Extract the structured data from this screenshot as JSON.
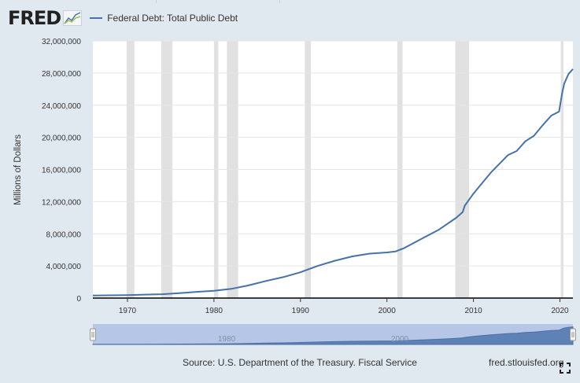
{
  "header": {
    "logo_text": "FRED",
    "logo_icon": "line-graph-icon",
    "logo_color": "#212121"
  },
  "legend": {
    "label": "Federal Debt: Total Public Debt",
    "color": "#4572a7"
  },
  "chart_data": {
    "type": "line",
    "ylabel": "Millions of Dollars",
    "xlim": [
      1966,
      2021.5
    ],
    "ylim": [
      0,
      32000000
    ],
    "y_ticks": [
      {
        "value": 0,
        "label": "0"
      },
      {
        "value": 4000000,
        "label": "4,000,000"
      },
      {
        "value": 8000000,
        "label": "8,000,000"
      },
      {
        "value": 12000000,
        "label": "12,000,000"
      },
      {
        "value": 16000000,
        "label": "16,000,000"
      },
      {
        "value": 20000000,
        "label": "20,000,000"
      },
      {
        "value": 24000000,
        "label": "24,000,000"
      },
      {
        "value": 28000000,
        "label": "28,000,000"
      },
      {
        "value": 32000000,
        "label": "32,000,000"
      }
    ],
    "x_ticks": [
      {
        "value": 1970,
        "label": "1970"
      },
      {
        "value": 1980,
        "label": "1980"
      },
      {
        "value": 1990,
        "label": "1990"
      },
      {
        "value": 2000,
        "label": "2000"
      },
      {
        "value": 2010,
        "label": "2010"
      },
      {
        "value": 2020,
        "label": "2020"
      }
    ],
    "recessions": [
      [
        1969.9,
        1970.8
      ],
      [
        1973.9,
        1975.2
      ],
      [
        1980.0,
        1980.5
      ],
      [
        1981.5,
        1982.8
      ],
      [
        1990.5,
        1991.2
      ],
      [
        2001.2,
        2001.8
      ],
      [
        2007.9,
        2009.5
      ],
      [
        2020.1,
        2020.4
      ]
    ],
    "grid": "horizontal",
    "series": [
      {
        "name": "Federal Debt: Total Public Debt",
        "color": "#4572a7",
        "x": [
          1966,
          1968,
          1970,
          1972,
          1974,
          1976,
          1978,
          1980,
          1982,
          1984,
          1986,
          1988,
          1990,
          1992,
          1994,
          1996,
          1998,
          2000,
          2001,
          2002,
          2004,
          2006,
          2008,
          2008.75,
          2009,
          2010,
          2011,
          2012,
          2013,
          2014,
          2015,
          2016,
          2017,
          2018,
          2019,
          2019.9,
          2020.25,
          2020.5,
          2021,
          2021.5
        ],
        "values": [
          320000,
          345000,
          370000,
          427000,
          475000,
          620000,
          772000,
          908000,
          1142000,
          1572000,
          2120000,
          2602000,
          3206000,
          4002000,
          4644000,
          5182000,
          5526000,
          5674000,
          5807000,
          6228000,
          7379000,
          8507000,
          9986000,
          10700000,
          11500000,
          13000000,
          14300000,
          15600000,
          16700000,
          17800000,
          18300000,
          19500000,
          20200000,
          21500000,
          22700000,
          23200000,
          25500000,
          26700000,
          27900000,
          28500000
        ]
      }
    ]
  },
  "navigator": {
    "labels": [
      "1980",
      "2000"
    ]
  },
  "footer": {
    "source": "Source: U.S. Department of the Treasury. Fiscal Service",
    "site": "fred.stlouisfed.org"
  }
}
